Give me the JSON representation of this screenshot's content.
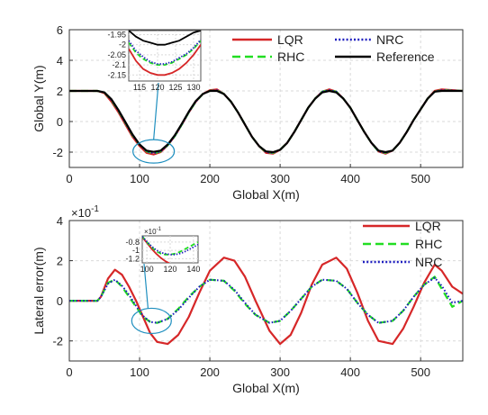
{
  "colors": {
    "lqr": "#d62728",
    "rhc": "#22dd22",
    "nrc": "#1f1fbf",
    "reference": "#000000",
    "callout": "#1f8fbf",
    "grid": "#d9d9d9"
  },
  "chart_data": [
    {
      "type": "line",
      "xlabel": "Global X(m)",
      "ylabel": "Global Y(m)",
      "xlim": [
        0,
        560
      ],
      "ylim": [
        -3,
        6
      ],
      "xticks": [
        "0",
        "100",
        "200",
        "300",
        "400",
        "500"
      ],
      "yticks": [
        "-2",
        "0",
        "2",
        "4",
        "6"
      ],
      "grid": true,
      "legend_position": "top-right",
      "series": [
        {
          "name": "LQR",
          "style": "solid",
          "x": [
            0,
            40,
            50,
            60,
            70,
            80,
            90,
            100,
            110,
            120,
            130,
            140,
            150,
            160,
            170,
            180,
            190,
            200,
            210,
            220,
            230,
            240,
            250,
            260,
            270,
            280,
            290,
            300,
            310,
            320,
            330,
            340,
            350,
            360,
            370,
            380,
            390,
            400,
            410,
            420,
            430,
            440,
            450,
            460,
            470,
            480,
            490,
            500,
            510,
            520,
            530,
            560
          ],
          "y": [
            2.0,
            2.0,
            1.85,
            1.3,
            0.6,
            -0.2,
            -1.0,
            -1.6,
            -2.05,
            -2.15,
            -2.0,
            -1.55,
            -0.95,
            -0.2,
            0.6,
            1.3,
            1.8,
            2.05,
            2.1,
            1.8,
            1.3,
            0.6,
            -0.2,
            -1.0,
            -1.6,
            -2.05,
            -2.1,
            -1.85,
            -1.4,
            -0.7,
            0.1,
            0.9,
            1.5,
            1.95,
            2.1,
            1.95,
            1.5,
            0.9,
            0.1,
            -0.7,
            -1.4,
            -1.95,
            -2.1,
            -1.9,
            -1.4,
            -0.7,
            0.1,
            0.8,
            1.5,
            2.0,
            2.1,
            2.0
          ]
        },
        {
          "name": "RHC",
          "style": "dashed",
          "x": [
            0,
            40,
            50,
            60,
            70,
            80,
            90,
            100,
            110,
            120,
            130,
            140,
            150,
            160,
            170,
            180,
            190,
            200,
            210,
            220,
            230,
            240,
            250,
            260,
            270,
            280,
            290,
            300,
            310,
            320,
            330,
            340,
            350,
            360,
            370,
            380,
            390,
            400,
            410,
            420,
            430,
            440,
            450,
            460,
            470,
            480,
            490,
            500,
            510,
            520,
            530,
            560
          ],
          "y": [
            2.0,
            2.0,
            1.9,
            1.4,
            0.7,
            -0.1,
            -0.9,
            -1.5,
            -1.95,
            -2.08,
            -1.95,
            -1.55,
            -0.95,
            -0.2,
            0.6,
            1.3,
            1.8,
            2.0,
            2.05,
            1.8,
            1.3,
            0.6,
            -0.2,
            -1.0,
            -1.6,
            -2.0,
            -2.05,
            -1.85,
            -1.4,
            -0.7,
            0.1,
            0.9,
            1.5,
            1.95,
            2.05,
            1.95,
            1.5,
            0.9,
            0.1,
            -0.7,
            -1.4,
            -1.95,
            -2.05,
            -1.9,
            -1.4,
            -0.7,
            0.1,
            0.8,
            1.5,
            1.95,
            2.05,
            2.0
          ]
        },
        {
          "name": "NRC",
          "style": "dotted",
          "x": [
            0,
            40,
            50,
            60,
            70,
            80,
            90,
            100,
            110,
            120,
            130,
            140,
            150,
            160,
            170,
            180,
            190,
            200,
            210,
            220,
            230,
            240,
            250,
            260,
            270,
            280,
            290,
            300,
            310,
            320,
            330,
            340,
            350,
            360,
            370,
            380,
            390,
            400,
            410,
            420,
            430,
            440,
            450,
            460,
            470,
            480,
            490,
            500,
            510,
            520,
            530,
            560
          ],
          "y": [
            2.0,
            2.0,
            1.9,
            1.4,
            0.7,
            -0.1,
            -0.9,
            -1.5,
            -1.95,
            -2.07,
            -1.95,
            -1.55,
            -0.95,
            -0.2,
            0.6,
            1.3,
            1.8,
            2.0,
            2.05,
            1.8,
            1.3,
            0.6,
            -0.2,
            -1.0,
            -1.6,
            -2.0,
            -2.05,
            -1.85,
            -1.4,
            -0.7,
            0.1,
            0.9,
            1.5,
            1.95,
            2.05,
            1.95,
            1.5,
            0.9,
            0.1,
            -0.7,
            -1.4,
            -1.95,
            -2.05,
            -1.9,
            -1.4,
            -0.7,
            0.1,
            0.8,
            1.5,
            1.95,
            2.05,
            2.0
          ]
        },
        {
          "name": "Reference",
          "style": "solid",
          "x": [
            0,
            40,
            50,
            60,
            70,
            80,
            90,
            100,
            110,
            120,
            130,
            140,
            150,
            160,
            170,
            180,
            190,
            200,
            210,
            220,
            230,
            240,
            250,
            260,
            270,
            280,
            290,
            300,
            310,
            320,
            330,
            340,
            350,
            360,
            370,
            380,
            390,
            400,
            410,
            420,
            430,
            440,
            450,
            460,
            470,
            480,
            490,
            500,
            510,
            520,
            530,
            560
          ],
          "y": [
            2.0,
            2.0,
            1.9,
            1.45,
            0.75,
            -0.05,
            -0.85,
            -1.5,
            -1.9,
            -1.98,
            -1.9,
            -1.5,
            -0.9,
            -0.15,
            0.65,
            1.35,
            1.8,
            2.0,
            2.0,
            1.8,
            1.3,
            0.6,
            -0.2,
            -1.0,
            -1.6,
            -1.95,
            -2.0,
            -1.85,
            -1.4,
            -0.7,
            0.1,
            0.9,
            1.5,
            1.9,
            2.0,
            1.9,
            1.5,
            0.9,
            0.1,
            -0.7,
            -1.4,
            -1.9,
            -2.0,
            -1.9,
            -1.4,
            -0.7,
            0.1,
            0.8,
            1.5,
            1.95,
            2.0,
            2.0
          ]
        }
      ],
      "inset": {
        "xlim": [
          112,
          132
        ],
        "ylim": [
          -2.18,
          -1.93
        ],
        "xticks": [
          "115",
          "120",
          "125",
          "130"
        ],
        "yticks": [
          "-1.95",
          "-2",
          "-2.05",
          "-2.1",
          "-2.15"
        ],
        "series": [
          {
            "name": "Reference",
            "x": [
              112,
              114,
              116,
              118,
              120,
              122,
              124,
              126,
              128,
              130,
              132
            ],
            "y": [
              -1.93,
              -1.96,
              -1.98,
              -1.99,
              -2.0,
              -2.0,
              -1.99,
              -1.98,
              -1.96,
              -1.94,
              -1.93
            ]
          },
          {
            "name": "RHC",
            "x": [
              112,
              114,
              116,
              118,
              120,
              122,
              124,
              126,
              128,
              130,
              132
            ],
            "y": [
              -1.99,
              -2.04,
              -2.07,
              -2.09,
              -2.1,
              -2.1,
              -2.09,
              -2.07,
              -2.05,
              -2.02,
              -1.98
            ]
          },
          {
            "name": "NRC",
            "x": [
              112,
              114,
              116,
              118,
              120,
              122,
              124,
              126,
              128,
              130,
              132
            ],
            "y": [
              -1.98,
              -2.03,
              -2.06,
              -2.085,
              -2.095,
              -2.095,
              -2.085,
              -2.065,
              -2.045,
              -2.015,
              -1.975
            ]
          },
          {
            "name": "LQR",
            "x": [
              112,
              114,
              116,
              118,
              120,
              122,
              124,
              126,
              128,
              130,
              132
            ],
            "y": [
              -2.02,
              -2.08,
              -2.12,
              -2.14,
              -2.15,
              -2.15,
              -2.14,
              -2.12,
              -2.09,
              -2.05,
              -2.0
            ]
          }
        ]
      }
    },
    {
      "type": "line",
      "xlabel": "Global X(m)",
      "ylabel": "Lateral error(m)",
      "exponent_label": "×10",
      "exponent_power": "-1",
      "xlim": [
        0,
        560
      ],
      "ylim": [
        -3,
        4
      ],
      "xticks": [
        "0",
        "100",
        "200",
        "300",
        "400",
        "500"
      ],
      "yticks": [
        "-2",
        "0",
        "2",
        "4"
      ],
      "grid": true,
      "legend_position": "top-right",
      "series": [
        {
          "name": "LQR",
          "style": "solid",
          "x": [
            0,
            40,
            45,
            55,
            65,
            75,
            85,
            95,
            105,
            115,
            125,
            140,
            155,
            170,
            185,
            200,
            220,
            235,
            250,
            265,
            285,
            300,
            315,
            330,
            345,
            360,
            380,
            395,
            410,
            425,
            440,
            460,
            475,
            490,
            505,
            520,
            530,
            545,
            560
          ],
          "y": [
            0,
            0,
            0.2,
            1.1,
            1.55,
            1.3,
            0.7,
            0.0,
            -0.8,
            -1.6,
            -2.05,
            -2.15,
            -1.7,
            -0.8,
            0.4,
            1.5,
            2.15,
            2.0,
            1.2,
            0.0,
            -1.5,
            -2.15,
            -1.7,
            -0.6,
            0.8,
            1.8,
            2.15,
            1.6,
            0.4,
            -1.0,
            -2.0,
            -2.15,
            -1.4,
            -0.3,
            0.9,
            1.8,
            1.5,
            0.7,
            0.35
          ]
        },
        {
          "name": "RHC",
          "style": "dashed",
          "x": [
            0,
            40,
            45,
            55,
            65,
            75,
            85,
            95,
            105,
            115,
            125,
            140,
            155,
            170,
            185,
            200,
            220,
            235,
            250,
            265,
            285,
            300,
            315,
            330,
            345,
            360,
            380,
            395,
            410,
            425,
            440,
            460,
            475,
            490,
            505,
            520,
            530,
            545,
            560
          ],
          "y": [
            0,
            0,
            0.2,
            0.9,
            1.05,
            0.7,
            0.2,
            -0.3,
            -0.8,
            -1.05,
            -1.1,
            -0.9,
            -0.4,
            0.2,
            0.7,
            1.05,
            1.0,
            0.5,
            -0.15,
            -0.7,
            -1.1,
            -1.0,
            -0.5,
            0.1,
            0.7,
            1.05,
            1.0,
            0.6,
            -0.1,
            -0.7,
            -1.1,
            -1.0,
            -0.5,
            0.2,
            0.8,
            1.2,
            0.6,
            -0.3,
            0.0
          ]
        },
        {
          "name": "NRC",
          "style": "dotted",
          "x": [
            0,
            40,
            45,
            55,
            65,
            75,
            85,
            95,
            105,
            115,
            125,
            140,
            155,
            170,
            185,
            200,
            220,
            235,
            250,
            265,
            285,
            300,
            315,
            330,
            345,
            360,
            380,
            395,
            410,
            425,
            440,
            460,
            475,
            490,
            505,
            520,
            530,
            545,
            560
          ],
          "y": [
            0,
            0,
            0.2,
            0.85,
            1.05,
            0.75,
            0.3,
            -0.25,
            -0.75,
            -1.05,
            -1.1,
            -0.9,
            -0.45,
            0.15,
            0.7,
            1.05,
            1.0,
            0.55,
            -0.1,
            -0.7,
            -1.1,
            -1.0,
            -0.5,
            0.1,
            0.7,
            1.05,
            1.0,
            0.6,
            -0.1,
            -0.7,
            -1.1,
            -1.0,
            -0.5,
            0.2,
            0.8,
            1.15,
            0.75,
            -0.1,
            0.0
          ]
        }
      ],
      "inset": {
        "exponent_label": "×10",
        "exponent_power": "-1",
        "xlim": [
          96,
          144
        ],
        "ylim": [
          -1.3,
          -0.65
        ],
        "xticks": [
          "100",
          "120",
          "140"
        ],
        "yticks": [
          "-0.8",
          "-1",
          "-1.2"
        ],
        "series": [
          {
            "name": "LQR",
            "x": [
              96,
              100,
              104,
              108,
              112,
              116,
              120
            ],
            "y": [
              -0.68,
              -0.82,
              -0.96,
              -1.08,
              -1.18,
              -1.26,
              -1.32
            ]
          },
          {
            "name": "RHC",
            "x": [
              96,
              100,
              104,
              108,
              112,
              116,
              120,
              124,
              128,
              132,
              136,
              140,
              144
            ],
            "y": [
              -0.66,
              -0.8,
              -0.92,
              -1.02,
              -1.08,
              -1.1,
              -1.1,
              -1.08,
              -1.04,
              -0.98,
              -0.92,
              -0.86,
              -0.8
            ]
          },
          {
            "name": "NRC",
            "x": [
              96,
              100,
              104,
              108,
              112,
              116,
              120,
              124,
              128,
              132,
              136,
              140,
              144
            ],
            "y": [
              -0.67,
              -0.79,
              -0.9,
              -0.99,
              -1.05,
              -1.08,
              -1.1,
              -1.1,
              -1.08,
              -1.04,
              -0.98,
              -0.92,
              -0.86
            ]
          }
        ]
      }
    }
  ]
}
